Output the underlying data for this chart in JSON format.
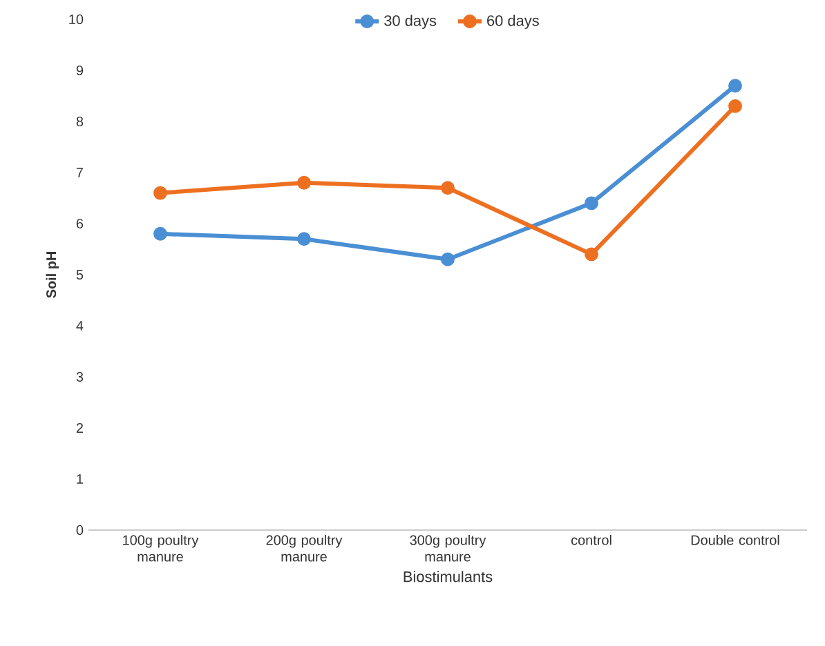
{
  "chart_data": {
    "type": "line",
    "xlabel": "Biostimulants",
    "ylabel": "Soil pH",
    "categories": [
      "100g poultry manure",
      "200g poultry manure",
      "300g poultry manure",
      "control",
      "Double control"
    ],
    "series": [
      {
        "name": "30 days",
        "color": "#4a8fd4",
        "values": [
          5.8,
          5.7,
          5.3,
          6.4,
          8.7
        ]
      },
      {
        "name": "60 days",
        "color": "#ed7021",
        "values": [
          6.6,
          6.8,
          6.7,
          5.4,
          8.3
        ]
      }
    ],
    "ylim": [
      0,
      10
    ],
    "yticks": [
      0,
      1,
      2,
      3,
      4,
      5,
      6,
      7,
      8,
      9,
      10
    ],
    "legend": "top",
    "marker": "circle",
    "line_style": "solid",
    "grid": false
  }
}
